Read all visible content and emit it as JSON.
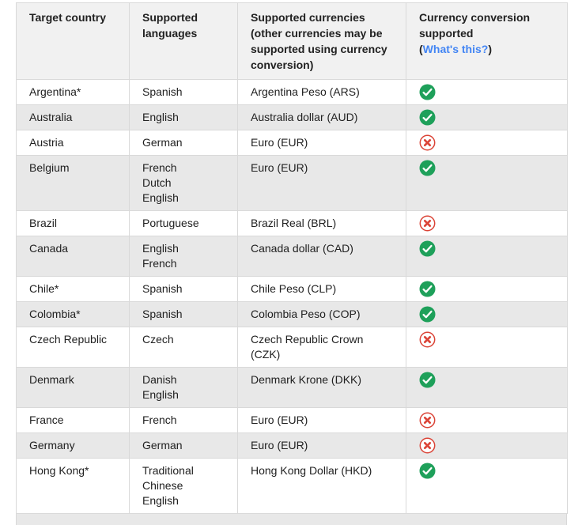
{
  "colors": {
    "header_bg": "#f1f1f1",
    "row_bg": "#ffffff",
    "row_alt_bg": "#e8e8e8",
    "border": "#d9d9d9",
    "text": "#212121",
    "link": "#4285f4",
    "check_green": "#1ea05a",
    "cross_red": "#db4437",
    "icon_check_inner": "#ffffff"
  },
  "icons": {
    "supported": "check-circle",
    "not_supported": "cross-circle"
  },
  "table": {
    "header": {
      "col1": "Target country",
      "col2": "Supported languages",
      "col3_line1": "Supported currencies",
      "col3_line2": "(other currencies may be supported using currency conversion)",
      "col4_line1": "Currency conversion supported",
      "col4_paren_open": "(",
      "col4_link": "What's this?",
      "col4_paren_close": ")"
    },
    "rows": [
      {
        "country": "Argentina*",
        "languages": [
          "Spanish"
        ],
        "currency": "Argentina Peso (ARS)",
        "conversion_supported": true
      },
      {
        "country": "Australia",
        "languages": [
          "English"
        ],
        "currency": "Australia dollar (AUD)",
        "conversion_supported": true
      },
      {
        "country": "Austria",
        "languages": [
          "German"
        ],
        "currency": "Euro (EUR)",
        "conversion_supported": false
      },
      {
        "country": "Belgium",
        "languages": [
          "French",
          "Dutch",
          "English"
        ],
        "currency": "Euro (EUR)",
        "conversion_supported": true
      },
      {
        "country": "Brazil",
        "languages": [
          "Portuguese"
        ],
        "currency": "Brazil Real (BRL)",
        "conversion_supported": false
      },
      {
        "country": "Canada",
        "languages": [
          "English",
          "French"
        ],
        "currency": "Canada dollar (CAD)",
        "conversion_supported": true
      },
      {
        "country": "Chile*",
        "languages": [
          "Spanish"
        ],
        "currency": "Chile Peso (CLP)",
        "conversion_supported": true
      },
      {
        "country": "Colombia*",
        "languages": [
          "Spanish"
        ],
        "currency": "Colombia Peso (COP)",
        "conversion_supported": true
      },
      {
        "country": "Czech Republic",
        "languages": [
          "Czech"
        ],
        "currency": "Czech Republic Crown (CZK)",
        "conversion_supported": false
      },
      {
        "country": "Denmark",
        "languages": [
          "Danish",
          "English"
        ],
        "currency": "Denmark Krone (DKK)",
        "conversion_supported": true
      },
      {
        "country": "France",
        "languages": [
          "French"
        ],
        "currency": "Euro (EUR)",
        "conversion_supported": false
      },
      {
        "country": "Germany",
        "languages": [
          "German"
        ],
        "currency": "Euro (EUR)",
        "conversion_supported": false
      },
      {
        "country": "Hong Kong*",
        "languages": [
          "Traditional Chinese",
          "English"
        ],
        "currency": "Hong Kong Dollar (HKD)",
        "conversion_supported": true
      }
    ]
  }
}
